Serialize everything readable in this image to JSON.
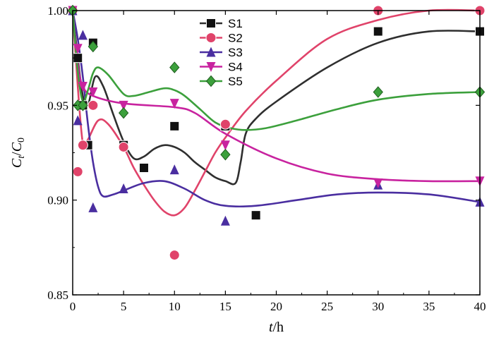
{
  "chart_data": {
    "type": "scatter",
    "xlabel": "t/h",
    "ylabel": "Ct/C0",
    "xlim": [
      0,
      40
    ],
    "ylim": [
      0.85,
      1.0
    ],
    "xticks": [
      "0",
      "5",
      "10",
      "15",
      "20",
      "25",
      "30",
      "35",
      "40"
    ],
    "yticks": [
      "0.85",
      "0.90",
      "0.95",
      "1.00"
    ],
    "legend_position": "top-center",
    "series": [
      {
        "name": "S1",
        "color": "#2f2f2f",
        "marker": "square",
        "points": [
          [
            0,
            1.0
          ],
          [
            0.5,
            0.975
          ],
          [
            1,
            0.95
          ],
          [
            1.5,
            0.929
          ],
          [
            2,
            0.983
          ],
          [
            5,
            0.929
          ],
          [
            7,
            0.917
          ],
          [
            10,
            0.939
          ],
          [
            15,
            0.939
          ],
          [
            18,
            0.892
          ],
          [
            30,
            0.989
          ],
          [
            40,
            0.989
          ]
        ],
        "curve": [
          [
            0,
            1.0
          ],
          [
            0.5,
            0.975
          ],
          [
            1,
            0.955
          ],
          [
            1.5,
            0.95
          ],
          [
            2.2,
            0.965
          ],
          [
            3,
            0.96
          ],
          [
            4,
            0.945
          ],
          [
            5,
            0.931
          ],
          [
            6,
            0.922
          ],
          [
            7,
            0.923
          ],
          [
            8,
            0.927
          ],
          [
            9,
            0.929
          ],
          [
            10,
            0.928
          ],
          [
            11,
            0.925
          ],
          [
            12,
            0.92
          ],
          [
            13,
            0.916
          ],
          [
            14,
            0.912
          ],
          [
            15,
            0.91
          ],
          [
            16,
            0.909
          ],
          [
            16.5,
            0.92
          ],
          [
            17,
            0.935
          ],
          [
            18,
            0.943
          ],
          [
            20,
            0.952
          ],
          [
            25,
            0.97
          ],
          [
            30,
            0.983
          ],
          [
            35,
            0.989
          ],
          [
            40,
            0.989
          ]
        ]
      },
      {
        "name": "S2",
        "color": "#e0436a",
        "marker": "circle",
        "points": [
          [
            0,
            1.0
          ],
          [
            0.5,
            0.915
          ],
          [
            1,
            0.929
          ],
          [
            2,
            0.95
          ],
          [
            5,
            0.928
          ],
          [
            10,
            0.871
          ],
          [
            15,
            0.94
          ],
          [
            30,
            1.0
          ],
          [
            40,
            1.0
          ]
        ],
        "curve": [
          [
            0,
            1.0
          ],
          [
            0.5,
            0.96
          ],
          [
            1,
            0.93
          ],
          [
            1.5,
            0.932
          ],
          [
            2.5,
            0.942
          ],
          [
            3.5,
            0.94
          ],
          [
            5,
            0.928
          ],
          [
            6,
            0.917
          ],
          [
            7,
            0.908
          ],
          [
            8,
            0.9
          ],
          [
            9,
            0.894
          ],
          [
            10,
            0.892
          ],
          [
            11,
            0.896
          ],
          [
            12,
            0.905
          ],
          [
            13,
            0.915
          ],
          [
            14,
            0.925
          ],
          [
            15,
            0.933
          ],
          [
            17,
            0.947
          ],
          [
            20,
            0.963
          ],
          [
            25,
            0.985
          ],
          [
            30,
            0.995
          ],
          [
            35,
            1.0
          ],
          [
            40,
            1.0
          ]
        ]
      },
      {
        "name": "S3",
        "color": "#4a2ea0",
        "marker": "triangle-up",
        "points": [
          [
            0,
            1.0
          ],
          [
            0.5,
            0.942
          ],
          [
            1,
            0.987
          ],
          [
            2,
            0.896
          ],
          [
            5,
            0.906
          ],
          [
            10,
            0.916
          ],
          [
            15,
            0.889
          ],
          [
            30,
            0.908
          ],
          [
            40,
            0.899
          ]
        ],
        "curve": [
          [
            0,
            1.0
          ],
          [
            0.5,
            0.985
          ],
          [
            1,
            0.965
          ],
          [
            1.5,
            0.94
          ],
          [
            2,
            0.92
          ],
          [
            2.5,
            0.907
          ],
          [
            3,
            0.902
          ],
          [
            4,
            0.903
          ],
          [
            5,
            0.905
          ],
          [
            7,
            0.909
          ],
          [
            9,
            0.91
          ],
          [
            11,
            0.906
          ],
          [
            13,
            0.9
          ],
          [
            15,
            0.897
          ],
          [
            18,
            0.897
          ],
          [
            22,
            0.9
          ],
          [
            26,
            0.903
          ],
          [
            30,
            0.904
          ],
          [
            35,
            0.903
          ],
          [
            40,
            0.899
          ]
        ]
      },
      {
        "name": "S4",
        "color": "#c8239f",
        "marker": "triangle-down",
        "points": [
          [
            0,
            1.0
          ],
          [
            0.5,
            0.98
          ],
          [
            1,
            0.96
          ],
          [
            2,
            0.957
          ],
          [
            5,
            0.95
          ],
          [
            10,
            0.951
          ],
          [
            15,
            0.929
          ],
          [
            30,
            0.909
          ],
          [
            40,
            0.91
          ]
        ],
        "curve": [
          [
            0,
            1.0
          ],
          [
            0.5,
            0.972
          ],
          [
            1,
            0.96
          ],
          [
            2,
            0.955
          ],
          [
            5,
            0.951
          ],
          [
            10,
            0.949
          ],
          [
            12,
            0.946
          ],
          [
            15,
            0.935
          ],
          [
            20,
            0.922
          ],
          [
            25,
            0.914
          ],
          [
            30,
            0.911
          ],
          [
            35,
            0.91
          ],
          [
            40,
            0.91
          ]
        ]
      },
      {
        "name": "S5",
        "color": "#3ca03c",
        "marker": "diamond",
        "points": [
          [
            0,
            1.0
          ],
          [
            0.5,
            0.95
          ],
          [
            1,
            0.95
          ],
          [
            2,
            0.981
          ],
          [
            5,
            0.946
          ],
          [
            10,
            0.97
          ],
          [
            15,
            0.924
          ],
          [
            30,
            0.957
          ],
          [
            40,
            0.957
          ]
        ],
        "curve": [
          [
            0,
            1.0
          ],
          [
            0.5,
            0.968
          ],
          [
            1,
            0.952
          ],
          [
            1.5,
            0.958
          ],
          [
            2,
            0.967
          ],
          [
            2.5,
            0.97
          ],
          [
            3.5,
            0.966
          ],
          [
            5,
            0.956
          ],
          [
            6,
            0.955
          ],
          [
            7.5,
            0.957
          ],
          [
            9,
            0.959
          ],
          [
            10,
            0.958
          ],
          [
            11,
            0.955
          ],
          [
            12.5,
            0.948
          ],
          [
            14,
            0.941
          ],
          [
            15.5,
            0.938
          ],
          [
            17,
            0.937
          ],
          [
            19,
            0.938
          ],
          [
            22,
            0.942
          ],
          [
            26,
            0.948
          ],
          [
            30,
            0.953
          ],
          [
            35,
            0.956
          ],
          [
            40,
            0.957
          ]
        ]
      }
    ]
  }
}
